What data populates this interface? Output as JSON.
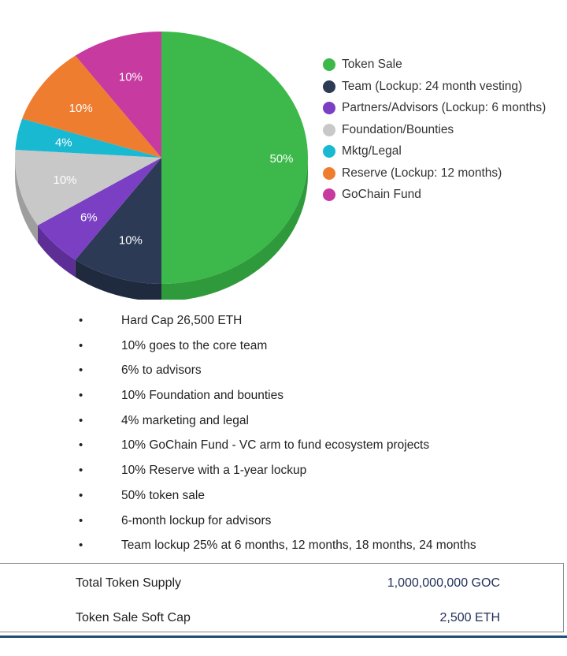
{
  "chart_data": {
    "type": "pie",
    "title": "",
    "slices": [
      {
        "label": "Token Sale",
        "value": 50,
        "color": "#3cb94a",
        "side": "#2f9a3c",
        "data_label": "50%"
      },
      {
        "label": "Team (Lockup: 24 month vesting)",
        "value": 10,
        "color": "#2c3a55",
        "side": "#1f2a3f",
        "data_label": "10%"
      },
      {
        "label": "Partners/Advisors (Lockup: 6 months)",
        "value": 6,
        "color": "#7b3fc4",
        "side": "#5c2e96",
        "data_label": "6%"
      },
      {
        "label": "Foundation/Bounties",
        "value": 10,
        "color": "#c8c8c8",
        "side": "#9e9e9e",
        "data_label": "10%"
      },
      {
        "label": "Mktg/Legal",
        "value": 4,
        "color": "#19b9d2",
        "side": "#1290a3",
        "data_label": "4%"
      },
      {
        "label": "Reserve (Lockup: 12 months)",
        "value": 10,
        "color": "#ef7d30",
        "side": "#c46022",
        "data_label": "10%"
      },
      {
        "label": "GoChain Fund",
        "value": 10,
        "color": "#c73aa0",
        "side": "#9c2b7d",
        "data_label": "10%"
      }
    ],
    "legend_position": "right"
  },
  "bullets": [
    "Hard Cap 26,500 ETH",
    "10% goes to the core team",
    "6% to advisors",
    "10% Foundation and bounties",
    "4% marketing and legal",
    "10% GoChain Fund - VC arm to fund ecosystem projects",
    "10% Reserve with a 1-year lockup",
    "50% token sale",
    "6-month lockup for advisors",
    "Team lockup 25% at 6 months, 12 months, 18 months, 24 months"
  ],
  "supply": {
    "total_label": "Total Token Supply",
    "total_value": "1,000,000,000 GOC",
    "softcap_label": "Token Sale Soft Cap",
    "softcap_value": "2,500 ETH"
  },
  "colors": {
    "border": "#8a8a8a",
    "bottom_bar": "#1f4e79",
    "value_text": "#1f2e5a"
  }
}
